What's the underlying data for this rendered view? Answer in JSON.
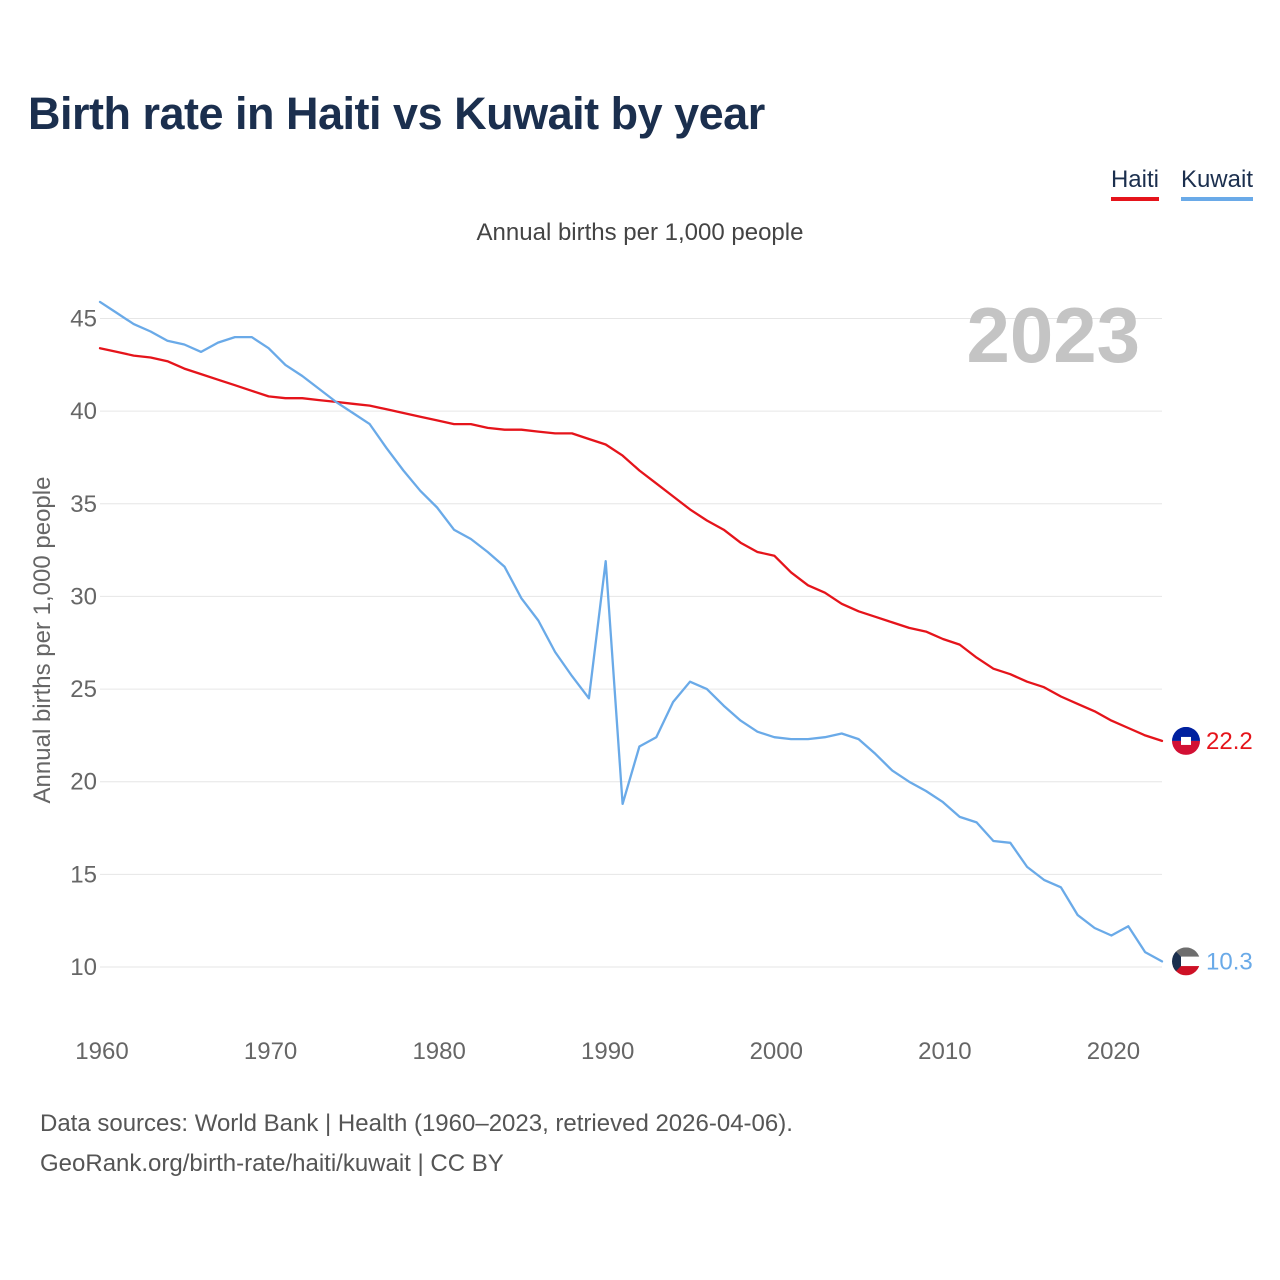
{
  "title": "Birth rate in Haiti vs Kuwait by year",
  "legend": [
    {
      "name": "Haiti",
      "color": "#e5141b"
    },
    {
      "name": "Kuwait",
      "color": "#6aaae8"
    }
  ],
  "chart_data": {
    "type": "line",
    "title": "Birth rate in Haiti vs Kuwait by year",
    "subtitle": "Annual births per 1,000 people",
    "ylabel": "Annual births per 1,000 people",
    "xlabel": "",
    "year_label": "2023",
    "ylim": [
      8,
      47
    ],
    "xlim": [
      1960,
      2023
    ],
    "yticks": [
      10,
      15,
      20,
      25,
      30,
      35,
      40,
      45
    ],
    "xticks": [
      1960,
      1970,
      1980,
      1990,
      2000,
      2010,
      2020
    ],
    "grid": true,
    "series": [
      {
        "name": "Haiti",
        "color": "#e5141b",
        "end_label": "22.2",
        "x": [
          1960,
          1961,
          1962,
          1963,
          1964,
          1965,
          1966,
          1967,
          1968,
          1969,
          1970,
          1971,
          1972,
          1973,
          1974,
          1975,
          1976,
          1977,
          1978,
          1979,
          1980,
          1981,
          1982,
          1983,
          1984,
          1985,
          1986,
          1987,
          1988,
          1989,
          1990,
          1991,
          1992,
          1993,
          1994,
          1995,
          1996,
          1997,
          1998,
          1999,
          2000,
          2001,
          2002,
          2003,
          2004,
          2005,
          2006,
          2007,
          2008,
          2009,
          2010,
          2011,
          2012,
          2013,
          2014,
          2015,
          2016,
          2017,
          2018,
          2019,
          2020,
          2021,
          2022,
          2023
        ],
        "values": [
          43.4,
          43.2,
          43.0,
          42.9,
          42.7,
          42.3,
          42.0,
          41.7,
          41.4,
          41.1,
          40.8,
          40.7,
          40.7,
          40.6,
          40.5,
          40.4,
          40.3,
          40.1,
          39.9,
          39.7,
          39.5,
          39.3,
          39.3,
          39.1,
          39.0,
          39.0,
          38.9,
          38.8,
          38.8,
          38.5,
          38.2,
          37.6,
          36.8,
          36.1,
          35.4,
          34.7,
          34.1,
          33.6,
          32.9,
          32.4,
          32.2,
          31.3,
          30.6,
          30.2,
          29.6,
          29.2,
          28.9,
          28.6,
          28.3,
          28.1,
          27.7,
          27.4,
          26.7,
          26.1,
          25.8,
          25.4,
          25.1,
          24.6,
          24.2,
          23.8,
          23.3,
          22.9,
          22.5,
          22.2
        ]
      },
      {
        "name": "Kuwait",
        "color": "#6aaae8",
        "end_label": "10.3",
        "x": [
          1960,
          1961,
          1962,
          1963,
          1964,
          1965,
          1966,
          1967,
          1968,
          1969,
          1970,
          1971,
          1972,
          1973,
          1974,
          1975,
          1976,
          1977,
          1978,
          1979,
          1980,
          1981,
          1982,
          1983,
          1984,
          1985,
          1986,
          1987,
          1988,
          1989,
          1990,
          1991,
          1992,
          1993,
          1994,
          1995,
          1996,
          1997,
          1998,
          1999,
          2000,
          2001,
          2002,
          2003,
          2004,
          2005,
          2006,
          2007,
          2008,
          2009,
          2010,
          2011,
          2012,
          2013,
          2014,
          2015,
          2016,
          2017,
          2018,
          2019,
          2020,
          2021,
          2022,
          2023
        ],
        "values": [
          45.9,
          45.3,
          44.7,
          44.3,
          43.8,
          43.6,
          43.2,
          43.7,
          44.0,
          44.0,
          43.4,
          42.5,
          41.9,
          41.2,
          40.5,
          39.9,
          39.3,
          38.0,
          36.8,
          35.7,
          34.8,
          33.6,
          33.1,
          32.4,
          31.6,
          29.9,
          28.7,
          27.0,
          25.7,
          24.5,
          31.9,
          18.8,
          21.9,
          22.4,
          24.3,
          25.4,
          25.0,
          24.1,
          23.3,
          22.7,
          22.4,
          22.3,
          22.3,
          22.4,
          22.6,
          22.3,
          21.5,
          20.6,
          20.0,
          19.5,
          18.9,
          18.1,
          17.8,
          16.8,
          16.7,
          15.4,
          14.7,
          14.3,
          12.8,
          12.1,
          11.7,
          12.2,
          10.8,
          10.3
        ]
      }
    ]
  },
  "footer": {
    "line1": "Data sources: World Bank | Health (1960–2023, retrieved 2026-04-06).",
    "line2": "GeoRank.org/birth-rate/haiti/kuwait | CC BY"
  },
  "flag_icons": [
    "haiti-flag-icon",
    "kuwait-flag-icon"
  ]
}
